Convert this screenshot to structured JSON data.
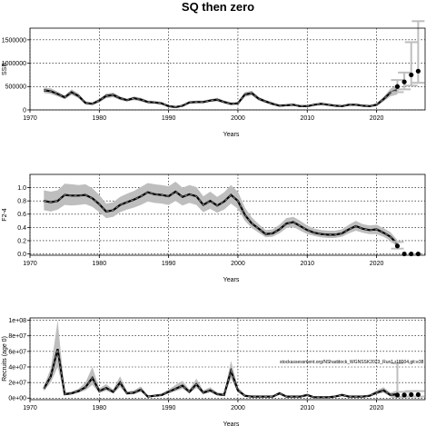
{
  "title": "SQ then zero",
  "annotation": "stockassessment.org/NShaddock_WGNSSK2023_Run1,r18004,git:e38",
  "colors": {
    "band": "#bebebe",
    "line": "#000000",
    "dash": "#808080",
    "proj_bar": "#bebebe",
    "grid": "#000000"
  },
  "chart_data": [
    {
      "type": "line",
      "name": "ssb",
      "xlabel": "Years",
      "ylabel": "SSB",
      "xlim": [
        1970,
        2027
      ],
      "ylim": [
        0,
        1750000
      ],
      "xticks": [
        1970,
        1980,
        1990,
        2000,
        2010,
        2020
      ],
      "yticks": [
        0,
        500000,
        1000000,
        1500000
      ],
      "ytick_labels": [
        "0",
        "500000",
        "1000000",
        "1500000"
      ],
      "grid": true,
      "years": [
        1972,
        1973,
        1974,
        1975,
        1976,
        1977,
        1978,
        1979,
        1980,
        1981,
        1982,
        1983,
        1984,
        1985,
        1986,
        1987,
        1988,
        1989,
        1990,
        1991,
        1992,
        1993,
        1994,
        1995,
        1996,
        1997,
        1998,
        1999,
        2000,
        2001,
        2002,
        2003,
        2004,
        2005,
        2006,
        2007,
        2008,
        2009,
        2010,
        2011,
        2012,
        2013,
        2014,
        2015,
        2016,
        2017,
        2018,
        2019,
        2020,
        2021,
        2022,
        2023
      ],
      "values": [
        420000,
        400000,
        340000,
        270000,
        380000,
        300000,
        150000,
        130000,
        200000,
        300000,
        320000,
        250000,
        210000,
        250000,
        220000,
        170000,
        160000,
        140000,
        80000,
        60000,
        90000,
        160000,
        170000,
        170000,
        200000,
        220000,
        170000,
        130000,
        140000,
        330000,
        360000,
        240000,
        180000,
        130000,
        90000,
        100000,
        110000,
        80000,
        80000,
        110000,
        130000,
        110000,
        90000,
        80000,
        110000,
        110000,
        90000,
        80000,
        110000,
        230000,
        370000,
        430000
      ],
      "lower": [
        360000,
        340000,
        290000,
        230000,
        320000,
        250000,
        120000,
        100000,
        160000,
        250000,
        270000,
        210000,
        180000,
        210000,
        180000,
        140000,
        130000,
        110000,
        60000,
        40000,
        70000,
        130000,
        140000,
        140000,
        170000,
        180000,
        140000,
        100000,
        110000,
        280000,
        310000,
        200000,
        150000,
        100000,
        70000,
        80000,
        85000,
        60000,
        60000,
        85000,
        100000,
        85000,
        70000,
        60000,
        85000,
        85000,
        70000,
        60000,
        80000,
        180000,
        290000,
        330000
      ],
      "upper": [
        480000,
        460000,
        390000,
        310000,
        440000,
        350000,
        180000,
        160000,
        240000,
        350000,
        370000,
        290000,
        240000,
        290000,
        260000,
        200000,
        190000,
        170000,
        100000,
        80000,
        110000,
        190000,
        200000,
        200000,
        230000,
        260000,
        200000,
        160000,
        170000,
        380000,
        410000,
        280000,
        210000,
        160000,
        110000,
        120000,
        135000,
        100000,
        100000,
        135000,
        160000,
        135000,
        110000,
        100000,
        135000,
        135000,
        110000,
        100000,
        140000,
        280000,
        450000,
        560000
      ],
      "projection": {
        "years": [
          2023,
          2024,
          2025,
          2026
        ],
        "values": [
          500000,
          600000,
          750000,
          830000
        ],
        "lower": [
          380000,
          440000,
          520000,
          580000
        ],
        "upper": [
          640000,
          800000,
          1450000,
          1900000
        ]
      }
    },
    {
      "type": "line",
      "name": "fbar",
      "xlabel": "Years",
      "ylabel": "F2-4",
      "xlim": [
        1970,
        2027
      ],
      "ylim": [
        -0.02,
        1.2
      ],
      "xticks": [
        1970,
        1980,
        1990,
        2000,
        2010,
        2020
      ],
      "yticks": [
        0,
        0.2,
        0.4,
        0.6,
        0.8,
        1.0
      ],
      "ytick_labels": [
        "0.0",
        "0.2",
        "0.4",
        "0.6",
        "0.8",
        "1.0"
      ],
      "grid": true,
      "years": [
        1972,
        1973,
        1974,
        1975,
        1976,
        1977,
        1978,
        1979,
        1980,
        1981,
        1982,
        1983,
        1984,
        1985,
        1986,
        1987,
        1988,
        1989,
        1990,
        1991,
        1992,
        1993,
        1994,
        1995,
        1996,
        1997,
        1998,
        1999,
        2000,
        2001,
        2002,
        2003,
        2004,
        2005,
        2006,
        2007,
        2008,
        2009,
        2010,
        2011,
        2012,
        2013,
        2014,
        2015,
        2016,
        2017,
        2018,
        2019,
        2020,
        2021,
        2022,
        2023
      ],
      "values": [
        0.8,
        0.78,
        0.8,
        0.89,
        0.88,
        0.88,
        0.89,
        0.84,
        0.75,
        0.64,
        0.66,
        0.74,
        0.78,
        0.82,
        0.87,
        0.93,
        0.9,
        0.89,
        0.87,
        0.94,
        0.86,
        0.9,
        0.87,
        0.74,
        0.8,
        0.73,
        0.79,
        0.89,
        0.8,
        0.59,
        0.46,
        0.38,
        0.3,
        0.31,
        0.37,
        0.46,
        0.48,
        0.42,
        0.36,
        0.32,
        0.3,
        0.29,
        0.29,
        0.31,
        0.37,
        0.42,
        0.38,
        0.36,
        0.37,
        0.32,
        0.26,
        0.15
      ],
      "lower": [
        0.66,
        0.64,
        0.67,
        0.74,
        0.73,
        0.74,
        0.75,
        0.71,
        0.63,
        0.54,
        0.56,
        0.63,
        0.67,
        0.7,
        0.74,
        0.79,
        0.77,
        0.76,
        0.74,
        0.8,
        0.73,
        0.77,
        0.74,
        0.63,
        0.68,
        0.62,
        0.67,
        0.76,
        0.68,
        0.5,
        0.39,
        0.32,
        0.25,
        0.26,
        0.31,
        0.39,
        0.41,
        0.35,
        0.3,
        0.27,
        0.25,
        0.24,
        0.24,
        0.26,
        0.31,
        0.35,
        0.32,
        0.3,
        0.3,
        0.26,
        0.2,
        0.1
      ],
      "upper": [
        0.96,
        0.94,
        0.96,
        1.06,
        1.05,
        1.04,
        1.05,
        0.99,
        0.89,
        0.76,
        0.78,
        0.86,
        0.91,
        0.95,
        1.01,
        1.07,
        1.05,
        1.04,
        1.02,
        1.09,
        1.0,
        1.04,
        1.01,
        0.87,
        0.94,
        0.86,
        0.93,
        1.04,
        0.94,
        0.7,
        0.55,
        0.45,
        0.36,
        0.37,
        0.44,
        0.54,
        0.56,
        0.5,
        0.43,
        0.38,
        0.36,
        0.35,
        0.35,
        0.37,
        0.44,
        0.5,
        0.45,
        0.43,
        0.44,
        0.39,
        0.33,
        0.21
      ],
      "projection": {
        "years": [
          2023,
          2024,
          2025,
          2026
        ],
        "values": [
          0.12,
          0.0,
          0.0,
          0.0
        ],
        "lower": [
          0.08,
          0.0,
          0.0,
          0.0
        ],
        "upper": [
          0.18,
          0.0,
          0.0,
          0.0
        ]
      }
    },
    {
      "type": "line",
      "name": "recruits",
      "xlabel": "Years",
      "ylabel": "Recruits (age 0)",
      "xlim": [
        1970,
        2027
      ],
      "ylim": [
        -2000000,
        103000000
      ],
      "xticks": [
        1970,
        1980,
        1990,
        2000,
        2010,
        2020
      ],
      "yticks": [
        0,
        20000000,
        40000000,
        60000000,
        80000000,
        100000000
      ],
      "ytick_labels": [
        "0e+00",
        "2e+07",
        "4e+07",
        "6e+07",
        "8e+07",
        "1e+08"
      ],
      "grid": true,
      "years": [
        1972,
        1973,
        1974,
        1975,
        1976,
        1977,
        1978,
        1979,
        1980,
        1981,
        1982,
        1983,
        1984,
        1985,
        1986,
        1987,
        1988,
        1989,
        1990,
        1991,
        1992,
        1993,
        1994,
        1995,
        1996,
        1997,
        1998,
        1999,
        2000,
        2001,
        2002,
        2003,
        2004,
        2005,
        2006,
        2007,
        2008,
        2009,
        2010,
        2011,
        2012,
        2013,
        2014,
        2015,
        2016,
        2017,
        2018,
        2019,
        2020,
        2021,
        2022,
        2023
      ],
      "values": [
        12000000,
        28000000,
        63000000,
        5000000,
        6000000,
        9000000,
        14000000,
        26000000,
        9000000,
        13000000,
        8000000,
        20000000,
        6000000,
        7000000,
        11000000,
        2000000,
        3000000,
        4000000,
        8000000,
        12000000,
        16000000,
        8000000,
        18000000,
        7000000,
        10000000,
        5000000,
        4000000,
        35000000,
        10000000,
        3000000,
        2000000,
        2000000,
        2000000,
        2000000,
        6000000,
        2000000,
        2000000,
        2000000,
        4000000,
        1000000,
        1000000,
        1000000,
        2000000,
        4000000,
        2000000,
        2000000,
        2000000,
        3000000,
        7000000,
        10000000,
        4000000,
        5000000
      ],
      "lower": [
        9000000,
        20000000,
        40000000,
        3500000,
        4500000,
        7000000,
        10000000,
        17000000,
        6500000,
        9500000,
        6000000,
        14000000,
        4500000,
        5000000,
        8000000,
        1500000,
        2000000,
        3000000,
        6000000,
        9000000,
        12000000,
        6000000,
        13000000,
        5000000,
        7500000,
        3500000,
        3000000,
        25000000,
        7500000,
        2000000,
        1500000,
        1500000,
        1500000,
        1500000,
        4500000,
        1500000,
        1500000,
        1500000,
        3000000,
        700000,
        700000,
        700000,
        1500000,
        3000000,
        1500000,
        1500000,
        1500000,
        2000000,
        5000000,
        7000000,
        2000000,
        2500000
      ],
      "upper": [
        16000000,
        38000000,
        100000000,
        7000000,
        8500000,
        12000000,
        20000000,
        40000000,
        12500000,
        18000000,
        11000000,
        28000000,
        8500000,
        10000000,
        15000000,
        3000000,
        4500000,
        6000000,
        11000000,
        17000000,
        22000000,
        11000000,
        25000000,
        10000000,
        14000000,
        7500000,
        6000000,
        48000000,
        14000000,
        4500000,
        3000000,
        3000000,
        3000000,
        3000000,
        8500000,
        3000000,
        3000000,
        3000000,
        6000000,
        1500000,
        1500000,
        1500000,
        3000000,
        6000000,
        3000000,
        3000000,
        3000000,
        4500000,
        10000000,
        14000000,
        7000000,
        10000000
      ],
      "projection": {
        "years": [
          2023,
          2024,
          2025,
          2026
        ],
        "values": [
          4000000,
          4000000,
          4500000,
          4500000
        ],
        "lower": [
          1500000,
          1800000,
          2000000,
          2000000
        ],
        "upper": [
          45000000,
          8000000,
          9000000,
          9000000
        ]
      }
    }
  ]
}
